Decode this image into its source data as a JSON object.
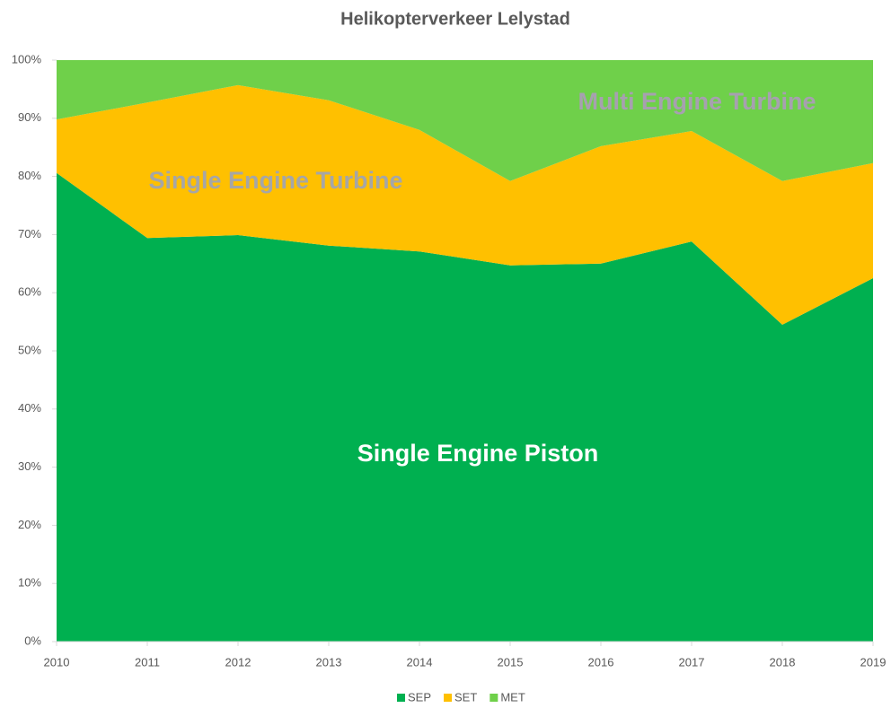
{
  "chart_data": {
    "type": "stacked_area",
    "title": "Helikopterverkeer Lelystad",
    "categories": [
      "2010",
      "2011",
      "2012",
      "2013",
      "2014",
      "2015",
      "2016",
      "2017",
      "2018",
      "2019"
    ],
    "series": [
      {
        "name": "SEP",
        "color": "#00b050",
        "values": [
          80.6,
          69.4,
          69.9,
          68.1,
          67.1,
          64.7,
          65.0,
          68.8,
          54.5,
          62.5
        ]
      },
      {
        "name": "SET",
        "color": "#ffc000",
        "values": [
          9.2,
          23.3,
          25.8,
          25.0,
          20.9,
          14.5,
          20.2,
          19.0,
          24.7,
          19.8
        ]
      },
      {
        "name": "MET",
        "color": "#6fd04a",
        "values": [
          10.2,
          7.3,
          4.3,
          6.9,
          12.0,
          20.8,
          14.8,
          12.2,
          20.8,
          17.7
        ]
      }
    ],
    "ylim": [
      0,
      100
    ],
    "yticks": [
      {
        "value": 0,
        "label": "0%"
      },
      {
        "value": 10,
        "label": "10%"
      },
      {
        "value": 20,
        "label": "20%"
      },
      {
        "value": 30,
        "label": "30%"
      },
      {
        "value": 40,
        "label": "40%"
      },
      {
        "value": 50,
        "label": "50%"
      },
      {
        "value": 60,
        "label": "60%"
      },
      {
        "value": 70,
        "label": "70%"
      },
      {
        "value": 80,
        "label": "80%"
      },
      {
        "value": 90,
        "label": "90%"
      },
      {
        "value": 100,
        "label": "100%"
      }
    ],
    "annotations": [
      {
        "text": "Single Engine Piston",
        "color": "#ffffff"
      },
      {
        "text": "Single Engine Turbine",
        "color": "#a6a6a6"
      },
      {
        "text": "Multi Engine Turbine",
        "color": "#a7a0b0"
      }
    ],
    "legend": "bottom"
  }
}
